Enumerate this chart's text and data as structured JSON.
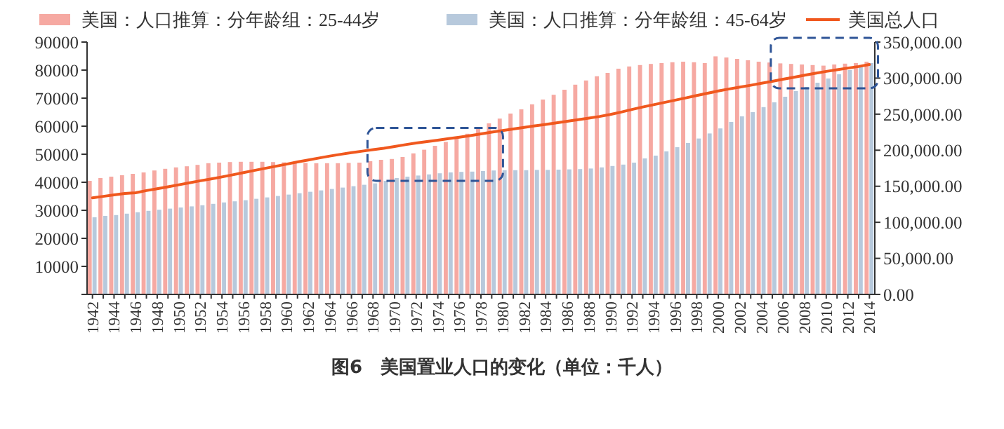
{
  "chart_data": {
    "type": "bar",
    "title": "图6　美国置业人口的变化（单位：千人）",
    "categories": [
      "1942",
      null,
      "1944",
      null,
      "1946",
      null,
      "1948",
      null,
      "1950",
      null,
      "1952",
      null,
      "1954",
      null,
      "1956",
      null,
      "1958",
      null,
      "1960",
      null,
      "1962",
      null,
      "1964",
      null,
      "1966",
      null,
      "1968",
      null,
      "1970",
      null,
      "1972",
      null,
      "1974",
      null,
      "1976",
      null,
      "1978",
      null,
      "1980",
      null,
      "1982",
      null,
      "1984",
      null,
      "1986",
      null,
      "1988",
      null,
      "1990",
      null,
      "1992",
      null,
      "1994",
      null,
      "1996",
      null,
      "1998",
      null,
      "2000",
      null,
      "2002",
      null,
      "2004",
      null,
      "2006",
      null,
      "2008",
      null,
      "2010",
      null,
      "2012",
      null,
      "2014"
    ],
    "series": [
      {
        "name": "美国：人口推算：分年龄组：25-44岁",
        "color": "#f6a9a2",
        "values": [
          40500,
          41500,
          42000,
          42500,
          43000,
          43500,
          44200,
          44800,
          45300,
          45700,
          46200,
          46800,
          47000,
          47200,
          47300,
          47300,
          47300,
          47200,
          47100,
          47000,
          46900,
          46800,
          46800,
          46800,
          46900,
          47000,
          47500,
          48000,
          48300,
          49000,
          50300,
          51600,
          53000,
          54400,
          55800,
          57300,
          59000,
          61000,
          62700,
          64500,
          66000,
          67800,
          69500,
          71200,
          73000,
          74800,
          76300,
          77800,
          79000,
          80500,
          81300,
          81800,
          82200,
          82500,
          82800,
          83000,
          82800,
          82500,
          84900,
          84500,
          84000,
          83500,
          83000,
          82700,
          82400,
          82200,
          82000,
          81800,
          81600,
          82000,
          82300,
          82500,
          83000
        ]
      },
      {
        "name": "美国：人口推算：分年龄组：45-64岁",
        "color": "#b7c9dc",
        "values": [
          27500,
          28000,
          28300,
          28800,
          29300,
          29800,
          30200,
          30600,
          31000,
          31400,
          31800,
          32300,
          32800,
          33200,
          33600,
          34100,
          34600,
          35100,
          35600,
          36100,
          36600,
          37100,
          37600,
          38100,
          38600,
          39100,
          39600,
          40500,
          41500,
          42000,
          42400,
          42800,
          43200,
          43500,
          43700,
          43800,
          44000,
          44200,
          44300,
          44300,
          44300,
          44400,
          44400,
          44500,
          44600,
          44700,
          44900,
          45300,
          45800,
          46300,
          47000,
          48500,
          49500,
          51000,
          52500,
          54000,
          55600,
          57400,
          59200,
          61500,
          63500,
          65000,
          66800,
          68500,
          70500,
          72500,
          74000,
          75500,
          77000,
          78500,
          80000,
          81300,
          82500
        ]
      },
      {
        "name": "美国总人口",
        "type": "line",
        "axis": "y2",
        "color": "#f0581e",
        "values": [
          134000,
          136000,
          138000,
          140000,
          141000,
          144000,
          146600,
          149200,
          152000,
          154900,
          157600,
          160200,
          163000,
          165900,
          168900,
          172000,
          174900,
          177800,
          180700,
          183700,
          186500,
          189200,
          191900,
          194300,
          196600,
          198700,
          200700,
          202700,
          205100,
          207700,
          209900,
          211900,
          213900,
          216000,
          218000,
          220200,
          222600,
          225100,
          227200,
          229500,
          231700,
          233800,
          235800,
          237900,
          240100,
          242300,
          244500,
          246800,
          249600,
          252900,
          256500,
          259900,
          263100,
          266300,
          269400,
          272600,
          275900,
          279000,
          282200,
          285000,
          287600,
          290100,
          292800,
          295500,
          298400,
          301200,
          304100,
          306800,
          309300,
          311600,
          313900,
          316100,
          318900
        ]
      }
    ],
    "ylim": [
      0,
      90000
    ],
    "yticks": [
      {
        "value": 0,
        "label": null
      },
      10000,
      20000,
      30000,
      40000,
      50000,
      60000,
      70000,
      80000,
      90000
    ],
    "y2lim": [
      0,
      350000
    ],
    "y2ticks": [
      {
        "value": 0,
        "label": "0.00"
      },
      {
        "value": 50000,
        "label": "50,000.00"
      },
      {
        "value": 100000,
        "label": "100,000.00"
      },
      {
        "value": 150000,
        "label": "150,000.00"
      },
      {
        "value": 200000,
        "label": "200,000.00"
      },
      {
        "value": 250000,
        "label": "250,000.00"
      },
      {
        "value": 300000,
        "label": "300,000.00"
      },
      {
        "value": 350000,
        "label": "350,000.00"
      }
    ],
    "legend": "top",
    "grid": false
  }
}
